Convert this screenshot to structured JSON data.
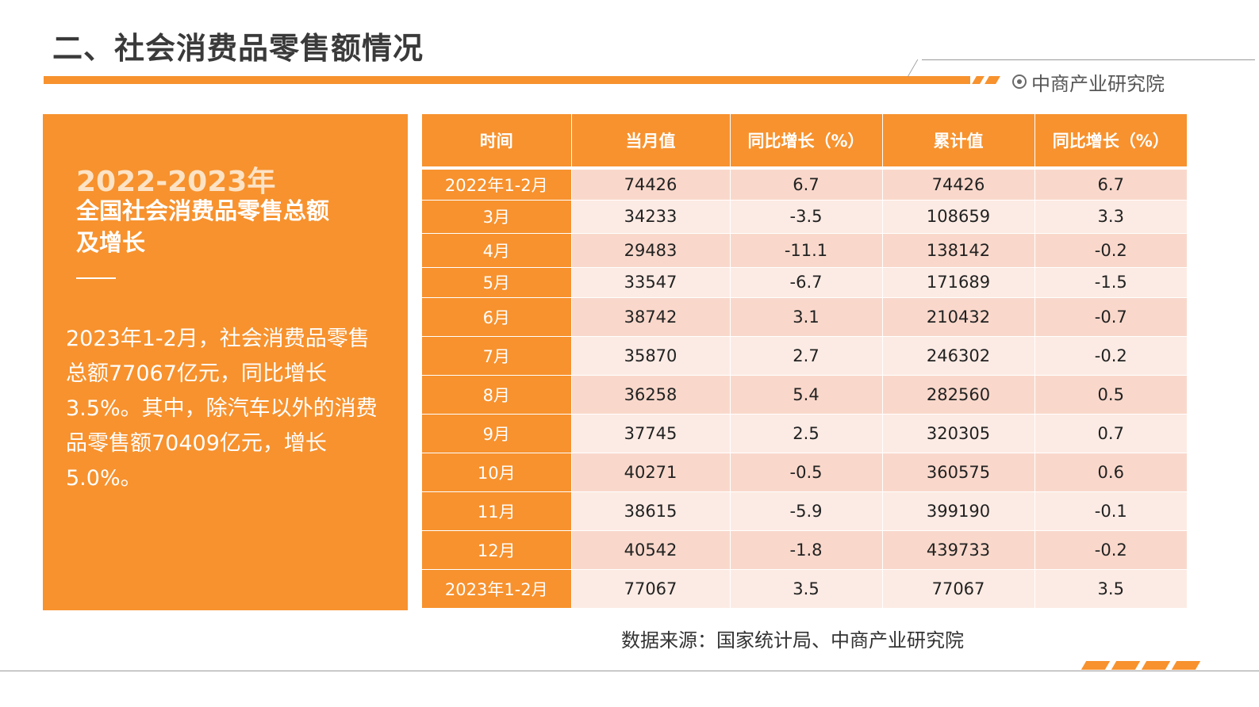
{
  "page_title": "二、社会消费品零售额情况",
  "brand": {
    "name": "中商产业研究院"
  },
  "panel": {
    "year": "2022-2023年",
    "subtitle": "全国社会消费品零售总额及增长",
    "body": "2023年1-2月，社会消费品零售总额77067亿元，同比增长3.5%。其中，除汽车以外的消费品零售额70409亿元，增长5.0%。"
  },
  "table": {
    "headers": [
      "时间",
      "当月值",
      "同比增长（%）",
      "累计值",
      "同比增长（%）"
    ],
    "rows": [
      [
        "2022年1-2月",
        "74426",
        "6.7",
        "74426",
        "6.7"
      ],
      [
        "3月",
        "34233",
        "-3.5",
        "108659",
        "3.3"
      ],
      [
        "4月",
        "29483",
        "-11.1",
        "138142",
        "-0.2"
      ],
      [
        "5月",
        "33547",
        "-6.7",
        "171689",
        "-1.5"
      ],
      [
        "6月",
        "38742",
        "3.1",
        "210432",
        "-0.7"
      ],
      [
        "7月",
        "35870",
        "2.7",
        "246302",
        "-0.2"
      ],
      [
        "8月",
        "36258",
        "5.4",
        "282560",
        "0.5"
      ],
      [
        "9月",
        "37745",
        "2.5",
        "320305",
        "0.7"
      ],
      [
        "10月",
        "40271",
        "-0.5",
        "360575",
        "0.6"
      ],
      [
        "11月",
        "38615",
        "-5.9",
        "399190",
        "-0.1"
      ],
      [
        "12月",
        "40542",
        "-1.8",
        "439733",
        "-0.2"
      ],
      [
        "2023年1-2月",
        "77067",
        "3.5",
        "77067",
        "3.5"
      ]
    ]
  },
  "source": "数据来源：国家统计局、中商产业研究院",
  "colors": {
    "accent": "#f7922e",
    "row_a": "#f9d8cb",
    "row_b": "#fcebe4"
  }
}
